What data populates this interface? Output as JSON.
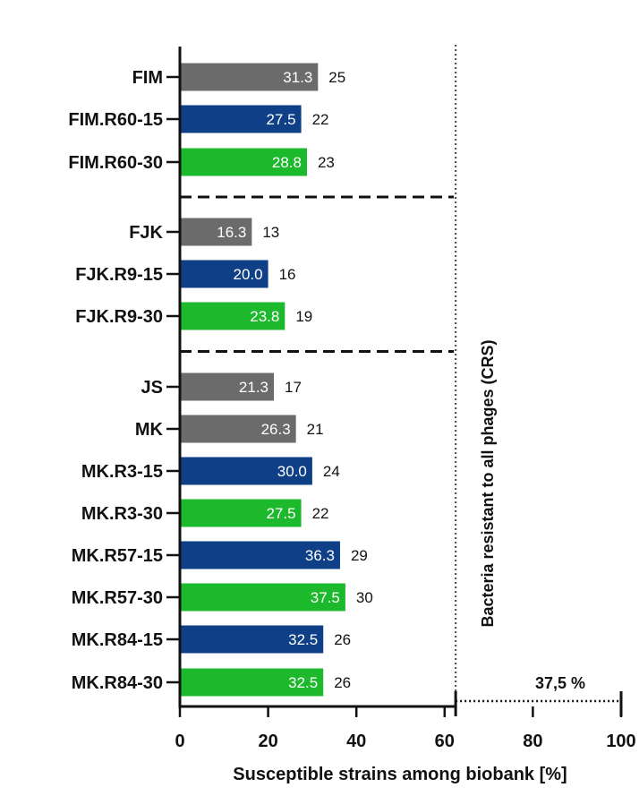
{
  "chart_data": {
    "type": "bar",
    "orientation": "horizontal",
    "xlabel": "Susceptible strains among biobank [%]",
    "xlim": [
      0,
      100
    ],
    "xticks": [
      "0",
      "20",
      "40",
      "60",
      "80",
      "100"
    ],
    "grid": false,
    "legend": "none",
    "categories": [
      "FIM",
      "FIM.R60-15",
      "FIM.R60-30",
      "FJK",
      "FJK.R9-15",
      "FJK.R9-30",
      "JS",
      "MK",
      "MK.R3-15",
      "MK.R3-30",
      "MK.R57-15",
      "MK.R57-30",
      "MK.R84-15",
      "MK.R84-30"
    ],
    "values": [
      31.3,
      27.5,
      28.8,
      16.3,
      20.0,
      23.8,
      21.3,
      26.3,
      30.0,
      27.5,
      36.3,
      37.5,
      32.5,
      32.5
    ],
    "value_labels": [
      "31.3",
      "27.5",
      "28.8",
      "16.3",
      "20.0",
      "23.8",
      "21.3",
      "26.3",
      "30.0",
      "27.5",
      "36.3",
      "37.5",
      "32.5",
      "32.5"
    ],
    "counts": [
      "25",
      "22",
      "23",
      "13",
      "16",
      "19",
      "17",
      "21",
      "24",
      "22",
      "29",
      "30",
      "26",
      "26"
    ],
    "bar_colors": [
      "#6b6b6b",
      "#0f3f86",
      "#1db92c",
      "#6b6b6b",
      "#0f3f86",
      "#1db92c",
      "#6b6b6b",
      "#6b6b6b",
      "#0f3f86",
      "#1db92c",
      "#0f3f86",
      "#1db92c",
      "#0f3f86",
      "#1db92c"
    ],
    "group_separators_after": [
      "FIM.R60-30",
      "FJK.R9-30"
    ],
    "crs_region": {
      "start": 62.5,
      "end": 100,
      "label": "Bacteria resistant to all phages (CRS)",
      "value_label": "37,5 %"
    }
  }
}
